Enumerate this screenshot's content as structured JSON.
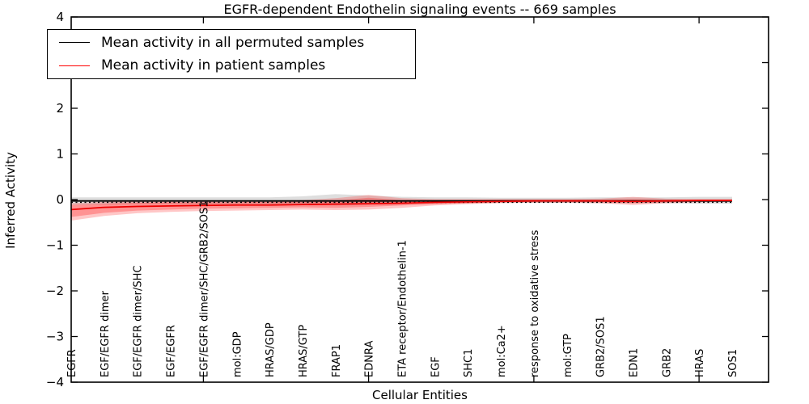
{
  "legend": {
    "items": [
      {
        "label": "Mean activity in all permuted samples",
        "color": "#000000"
      },
      {
        "label": "Mean activity in patient samples",
        "color": "#ff0000"
      }
    ]
  },
  "chart_data": {
    "type": "line",
    "title": "EGFR-dependent Endothelin signaling events -- 669 samples",
    "xlabel": "Cellular Entities",
    "ylabel": "Inferred Activity",
    "ylim": [
      -4,
      4
    ],
    "ytick_labels": [
      "4",
      "3",
      "2",
      "1",
      "0",
      "−1",
      "−2",
      "−3",
      "−4"
    ],
    "ytick_values": [
      4,
      3,
      2,
      1,
      0,
      -1,
      -2,
      -3,
      -4
    ],
    "x_major_tick_indices": [
      4,
      9,
      14,
      19
    ],
    "grid": false,
    "legend_position": "upper left",
    "categories": [
      "EGFR",
      "EGF/EGFR dimer",
      "EGF/EGFR dimer/SHC",
      "EGF/EGFR",
      "EGF/EGFR dimer/SHC/GRB2/SOS1",
      "mol:GDP",
      "HRAS/GDP",
      "HRAS/GTP",
      "FRAP1",
      "EDNRA",
      "ETA receptor/Endothelin-1",
      "EGF",
      "SHC1",
      "mol:Ca2+",
      "response to oxidative stress",
      "mol:GTP",
      "GRB2/SOS1",
      "EDN1",
      "GRB2",
      "HRAS",
      "SOS1"
    ],
    "series": [
      {
        "name": "Permuted samples band (std)",
        "kind": "band",
        "color": "rgba(0,0,0,0.13)",
        "upper": [
          0.05,
          0.05,
          0.05,
          0.05,
          0.05,
          0.05,
          0.05,
          0.07,
          0.12,
          0.09,
          0.06,
          0.05,
          0.05,
          0.04,
          0.04,
          0.04,
          0.05,
          0.05,
          0.05,
          0.06,
          0.06
        ],
        "lower": [
          -0.12,
          -0.11,
          -0.1,
          -0.1,
          -0.1,
          -0.1,
          -0.1,
          -0.11,
          -0.13,
          -0.11,
          -0.1,
          -0.09,
          -0.08,
          -0.07,
          -0.07,
          -0.07,
          -0.08,
          -0.08,
          -0.08,
          -0.09,
          -0.09
        ]
      },
      {
        "name": "Patient samples band outer",
        "kind": "band",
        "color": "rgba(255,0,0,0.22)",
        "upper": [
          -0.08,
          -0.05,
          -0.03,
          -0.03,
          -0.02,
          -0.02,
          -0.02,
          -0.01,
          0.03,
          0.1,
          0.03,
          0.01,
          0.01,
          0.01,
          0.01,
          0.01,
          0.02,
          0.06,
          0.02,
          0.01,
          0.01
        ],
        "lower": [
          -0.46,
          -0.36,
          -0.3,
          -0.27,
          -0.25,
          -0.24,
          -0.23,
          -0.22,
          -0.23,
          -0.22,
          -0.18,
          -0.13,
          -0.1,
          -0.08,
          -0.07,
          -0.07,
          -0.08,
          -0.12,
          -0.08,
          -0.06,
          -0.05
        ]
      },
      {
        "name": "Patient samples band inner",
        "kind": "band",
        "color": "rgba(255,0,0,0.26)",
        "upper": [
          -0.12,
          -0.09,
          -0.07,
          -0.06,
          -0.06,
          -0.06,
          -0.05,
          -0.05,
          -0.02,
          0.04,
          -0.01,
          -0.01,
          -0.01,
          0.0,
          0.0,
          0.0,
          0.0,
          0.01,
          0.0,
          0.0,
          0.0
        ],
        "lower": [
          -0.38,
          -0.29,
          -0.24,
          -0.22,
          -0.2,
          -0.19,
          -0.18,
          -0.17,
          -0.18,
          -0.16,
          -0.13,
          -0.1,
          -0.08,
          -0.06,
          -0.05,
          -0.05,
          -0.06,
          -0.08,
          -0.06,
          -0.04,
          -0.03
        ]
      },
      {
        "name": "Zero baseline (dotted)",
        "kind": "line",
        "dash": "dotted",
        "color": "#000000",
        "width": 1.4,
        "values": [
          -0.06,
          -0.06,
          -0.06,
          -0.06,
          -0.06,
          -0.06,
          -0.06,
          -0.06,
          -0.06,
          -0.06,
          -0.06,
          -0.06,
          -0.06,
          -0.06,
          -0.06,
          -0.06,
          -0.06,
          -0.06,
          -0.06,
          -0.06,
          -0.06
        ]
      },
      {
        "name": "Mean activity in all permuted samples",
        "kind": "line",
        "color": "#000000",
        "width": 1.9,
        "values": [
          -0.03,
          -0.03,
          -0.03,
          -0.03,
          -0.03,
          -0.03,
          -0.03,
          -0.03,
          -0.03,
          -0.03,
          -0.03,
          -0.03,
          -0.03,
          -0.03,
          -0.03,
          -0.03,
          -0.03,
          -0.03,
          -0.03,
          -0.03,
          -0.03
        ]
      },
      {
        "name": "Mean activity in patient samples",
        "kind": "line",
        "color": "#ee0000",
        "width": 1.7,
        "values": [
          -0.22,
          -0.17,
          -0.15,
          -0.14,
          -0.13,
          -0.12,
          -0.12,
          -0.11,
          -0.1,
          -0.09,
          -0.08,
          -0.06,
          -0.05,
          -0.04,
          -0.03,
          -0.03,
          -0.03,
          -0.04,
          -0.03,
          -0.02,
          -0.02
        ]
      }
    ]
  }
}
